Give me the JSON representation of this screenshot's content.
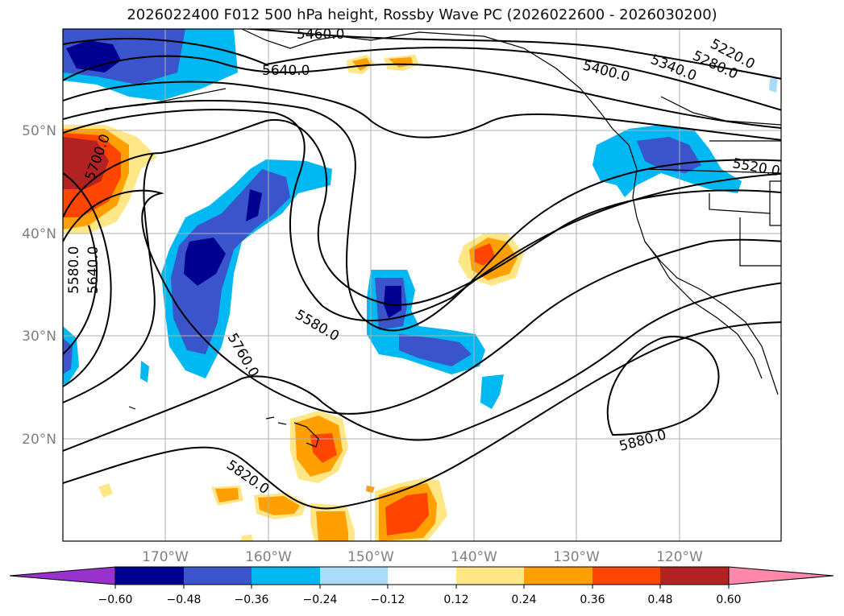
{
  "title": "2026022400 F012 500 hPa height, Rossby Wave PC (2026022600 - 2026030200)",
  "map": {
    "lon_ticks": [
      "170°W",
      "160°W",
      "150°W",
      "140°W",
      "130°W",
      "120°W"
    ],
    "lat_ticks": [
      "50°N",
      "40°N",
      "30°N",
      "20°N"
    ],
    "contour_labels": [
      "5460.0",
      "5640.0",
      "5400.0",
      "5340.0",
      "5280.0",
      "5220.0",
      "5700.0",
      "5520.0",
      "5580.0",
      "5640.0",
      "5580.0",
      "5760.0",
      "5880.0",
      "5820.0"
    ],
    "colors": {
      "neg_060": "#000090",
      "neg_048": "#3a54cc",
      "neg_036": "#00b8f2",
      "neg_024": "#aadcf8",
      "pos_024": "#ffe687",
      "pos_036": "#ffa000",
      "pos_048": "#ff4500",
      "pos_060": "#b22222",
      "below_min": "#9932cc",
      "above_max": "#ff88aa"
    }
  },
  "colorbar": {
    "ticks": [
      "−0.60",
      "−0.48",
      "−0.36",
      "−0.24",
      "−0.12",
      "0.12",
      "0.24",
      "0.36",
      "0.48",
      "0.60"
    ],
    "colors": [
      "#9932cc",
      "#000090",
      "#3a54cc",
      "#3a54cc",
      "#00b8f2",
      "#aadcf8",
      "#ffffff",
      "#ffe687",
      "#ffa000",
      "#ff4500",
      "#b22222",
      "#ff88aa"
    ]
  }
}
